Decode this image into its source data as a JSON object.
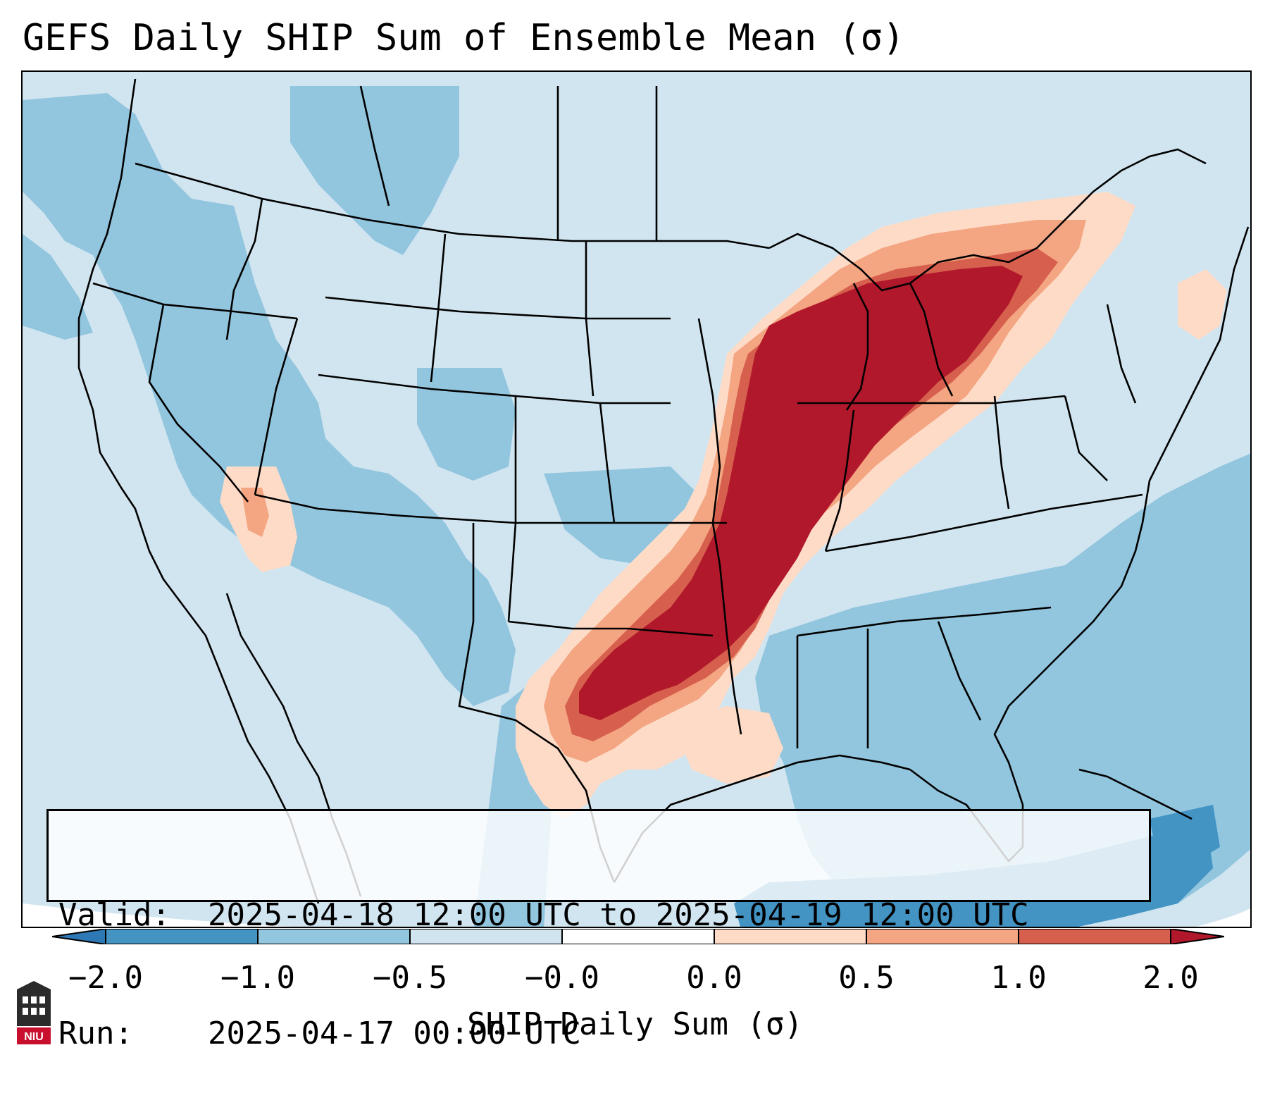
{
  "title": "GEFS Daily SHIP Sum of Ensemble Mean (σ)",
  "info": {
    "valid_key": "Valid:",
    "valid_value": "2025-04-18 12:00 UTC to 2025-04-19 12:00 UTC",
    "run_key": "Run:",
    "run_value": "2025-04-17 00:00 UTC"
  },
  "colorbar": {
    "label": "SHIP Daily Sum (σ)",
    "ticks": [
      "−2.0",
      "−1.0",
      "−0.5",
      "−0.0",
      "0.0",
      "0.5",
      "1.0",
      "2.0"
    ],
    "colors": {
      "extend_low": "#2f78b6",
      "bin_neg2_neg1": "#4393c3",
      "bin_neg1_neg05": "#92c5de",
      "bin_neg05_0": "#d1e5f0",
      "bin_0_05": "#fddbc7",
      "bin_05_1": "#f4a582",
      "bin_1_2": "#d6604d",
      "extend_high": "#b2182b"
    }
  },
  "logo": {
    "text": "NIU",
    "color": "#c8102e"
  },
  "map": {
    "projection": "lambert-conformal-conus",
    "background_color": "#d1e5f0",
    "boundaries": [
      "coastlines",
      "state-borders",
      "country-borders"
    ]
  }
}
